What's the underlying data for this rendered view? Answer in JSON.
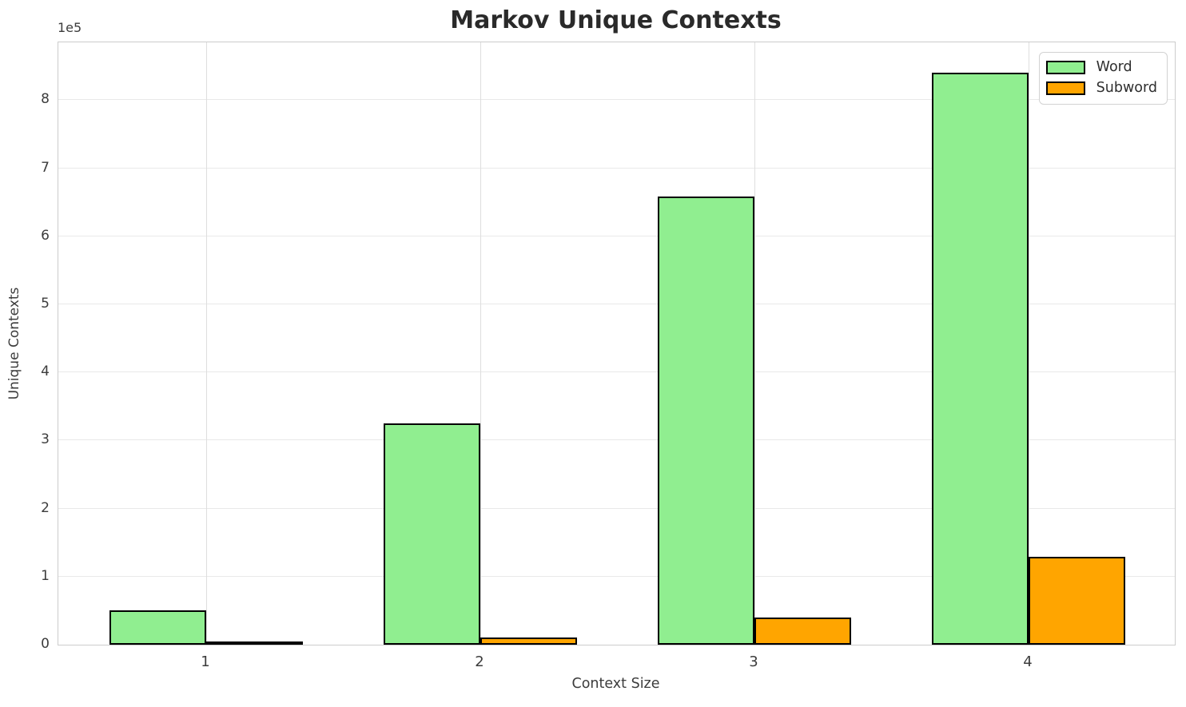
{
  "title": "Markov Unique Contexts",
  "chart_data": {
    "type": "bar",
    "title": "Markov Unique Contexts",
    "xlabel": "Context Size",
    "ylabel": "Unique Contexts",
    "y_offset_label": "1e5",
    "categories": [
      "1",
      "2",
      "3",
      "4"
    ],
    "series": [
      {
        "name": "Word",
        "color": "#90EE90",
        "values": [
          50000,
          325000,
          658000,
          840000
        ]
      },
      {
        "name": "Subword",
        "color": "#FFA500",
        "values": [
          2000,
          10000,
          40000,
          129000
        ]
      }
    ],
    "bar_edge_color": "#000000",
    "ylim": [
      0,
      885000
    ],
    "yticks": [
      0,
      100000,
      200000,
      300000,
      400000,
      500000,
      600000,
      700000,
      800000
    ],
    "ytick_labels": [
      "0",
      "1",
      "2",
      "3",
      "4",
      "5",
      "6",
      "7",
      "8"
    ],
    "grid": true,
    "legend_position": "upper right"
  },
  "legend": {
    "items": [
      {
        "label": "Word",
        "color": "#90EE90"
      },
      {
        "label": "Subword",
        "color": "#FFA500"
      }
    ]
  }
}
